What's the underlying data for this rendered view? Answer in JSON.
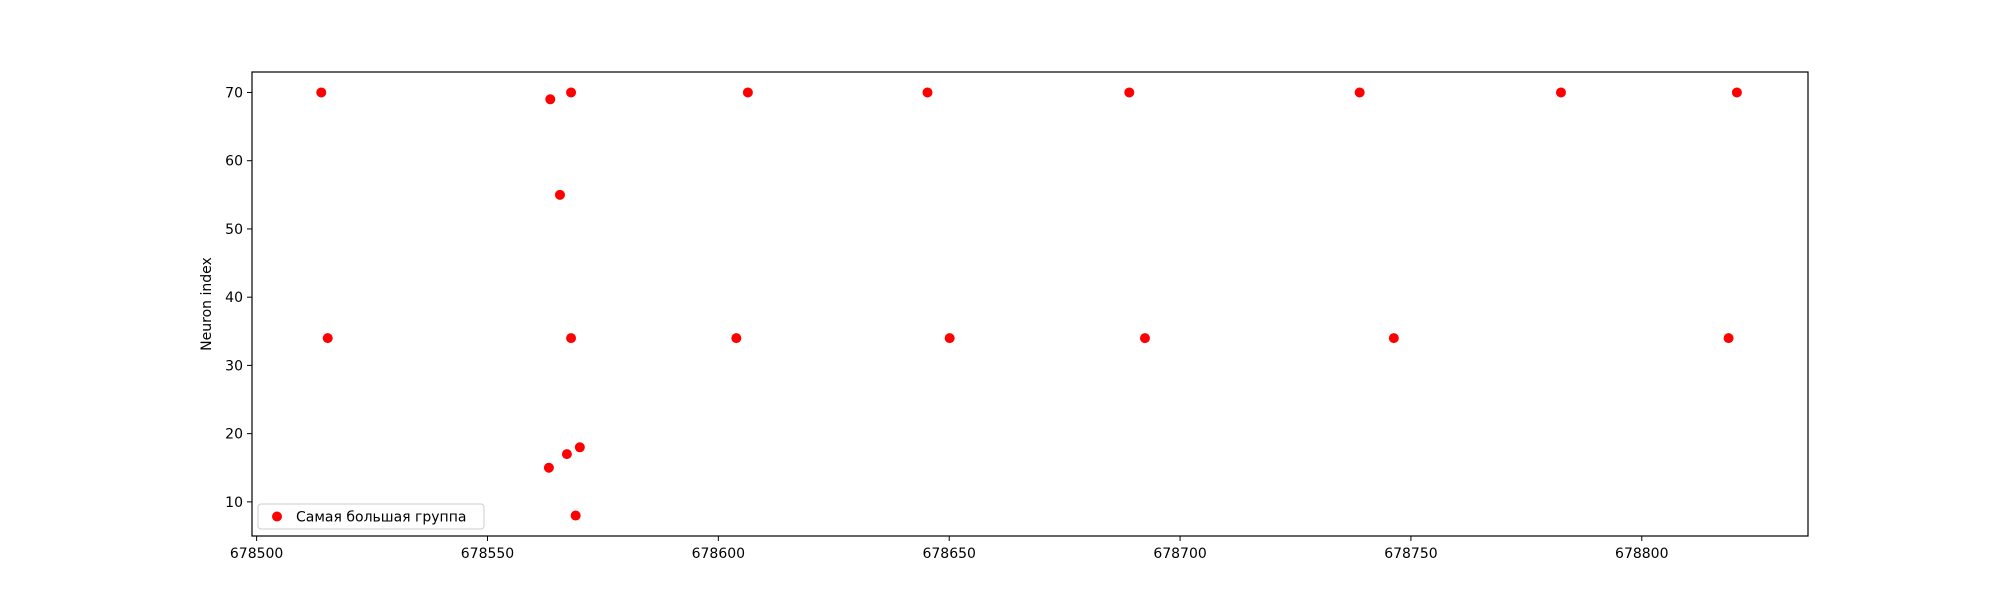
{
  "chart_data": {
    "type": "scatter",
    "title": "",
    "xlabel": "",
    "ylabel": "Neuron index",
    "xlim": [
      678499,
      678836
    ],
    "ylim": [
      5,
      73
    ],
    "xticks": [
      678500,
      678550,
      678600,
      678650,
      678700,
      678750,
      678800
    ],
    "yticks": [
      10,
      20,
      30,
      40,
      50,
      60,
      70
    ],
    "grid": false,
    "legend": "bottom-left",
    "series": [
      {
        "name": "Самая большая группа",
        "color": "#ff0000",
        "points": [
          {
            "x": 678514.0,
            "y": 70
          },
          {
            "x": 678515.4,
            "y": 34
          },
          {
            "x": 678563.6,
            "y": 69
          },
          {
            "x": 678563.3,
            "y": 15
          },
          {
            "x": 678565.7,
            "y": 55
          },
          {
            "x": 678567.2,
            "y": 17
          },
          {
            "x": 678568.1,
            "y": 70
          },
          {
            "x": 678568.1,
            "y": 34
          },
          {
            "x": 678569.1,
            "y": 8
          },
          {
            "x": 678570.0,
            "y": 18
          },
          {
            "x": 678603.9,
            "y": 34
          },
          {
            "x": 678606.4,
            "y": 70
          },
          {
            "x": 678645.3,
            "y": 70
          },
          {
            "x": 678650.1,
            "y": 34
          },
          {
            "x": 678689.0,
            "y": 70
          },
          {
            "x": 678692.4,
            "y": 34
          },
          {
            "x": 678738.9,
            "y": 70
          },
          {
            "x": 678746.3,
            "y": 34
          },
          {
            "x": 678782.5,
            "y": 70
          },
          {
            "x": 678818.8,
            "y": 34
          },
          {
            "x": 678820.6,
            "y": 70
          }
        ]
      }
    ]
  }
}
